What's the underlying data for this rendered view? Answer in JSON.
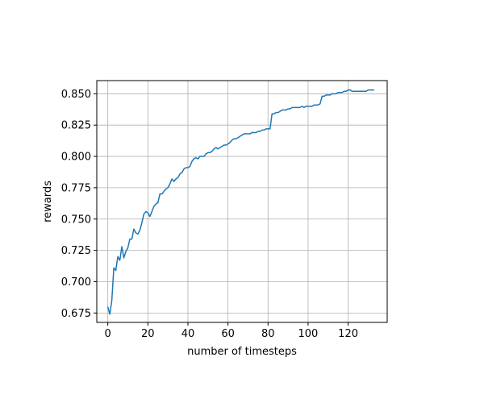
{
  "chart_data": {
    "type": "line",
    "xlabel": "number of timesteps",
    "ylabel": "rewards",
    "xlim": [
      -5.5,
      139.5
    ],
    "ylim": [
      0.6675,
      0.8605
    ],
    "xticks": [
      0,
      20,
      40,
      60,
      80,
      100,
      120
    ],
    "xtick_labels": [
      "0",
      "20",
      "40",
      "60",
      "80",
      "100",
      "120"
    ],
    "yticks": [
      0.675,
      0.7,
      0.725,
      0.75,
      0.775,
      0.8,
      0.825,
      0.85
    ],
    "ytick_labels": [
      "0.675",
      "0.700",
      "0.725",
      "0.750",
      "0.775",
      "0.800",
      "0.825",
      "0.850"
    ],
    "grid": true,
    "series": [
      {
        "color": "#1f77b4",
        "x": [
          0,
          1,
          2,
          3,
          4,
          5,
          6,
          7,
          8,
          9,
          10,
          11,
          12,
          13,
          14,
          15,
          16,
          17,
          18,
          19,
          20,
          21,
          22,
          23,
          24,
          25,
          26,
          27,
          28,
          29,
          30,
          31,
          32,
          33,
          34,
          35,
          36,
          37,
          38,
          39,
          40,
          41,
          42,
          43,
          44,
          45,
          46,
          47,
          48,
          49,
          50,
          51,
          52,
          53,
          54,
          55,
          56,
          57,
          58,
          59,
          60,
          61,
          62,
          63,
          64,
          65,
          66,
          67,
          68,
          69,
          70,
          71,
          72,
          73,
          74,
          75,
          76,
          77,
          78,
          79,
          80,
          81,
          82,
          83,
          84,
          85,
          86,
          87,
          88,
          89,
          90,
          91,
          92,
          93,
          94,
          95,
          96,
          97,
          98,
          99,
          100,
          101,
          102,
          103,
          104,
          105,
          106,
          107,
          108,
          109,
          110,
          111,
          112,
          113,
          114,
          115,
          116,
          117,
          118,
          119,
          120,
          121,
          122,
          123,
          124,
          125,
          126,
          127,
          128,
          129,
          130,
          131,
          132,
          133
        ],
        "y": [
          0.68,
          0.674,
          0.685,
          0.711,
          0.709,
          0.72,
          0.717,
          0.728,
          0.719,
          0.724,
          0.727,
          0.734,
          0.734,
          0.742,
          0.739,
          0.738,
          0.741,
          0.747,
          0.754,
          0.756,
          0.755,
          0.752,
          0.756,
          0.76,
          0.762,
          0.763,
          0.77,
          0.77,
          0.772,
          0.774,
          0.775,
          0.778,
          0.782,
          0.78,
          0.782,
          0.783,
          0.786,
          0.787,
          0.79,
          0.791,
          0.791,
          0.792,
          0.796,
          0.798,
          0.799,
          0.798,
          0.8,
          0.8,
          0.8,
          0.802,
          0.803,
          0.803,
          0.804,
          0.806,
          0.807,
          0.806,
          0.807,
          0.808,
          0.809,
          0.809,
          0.81,
          0.811,
          0.813,
          0.814,
          0.814,
          0.815,
          0.816,
          0.817,
          0.818,
          0.818,
          0.818,
          0.818,
          0.819,
          0.819,
          0.819,
          0.82,
          0.82,
          0.821,
          0.821,
          0.822,
          0.822,
          0.822,
          0.834,
          0.834,
          0.835,
          0.835,
          0.836,
          0.837,
          0.837,
          0.837,
          0.838,
          0.838,
          0.839,
          0.839,
          0.839,
          0.839,
          0.839,
          0.84,
          0.839,
          0.84,
          0.84,
          0.84,
          0.84,
          0.841,
          0.841,
          0.841,
          0.842,
          0.848,
          0.848,
          0.849,
          0.849,
          0.849,
          0.85,
          0.85,
          0.85,
          0.851,
          0.851,
          0.851,
          0.852,
          0.852,
          0.853,
          0.853,
          0.852,
          0.852,
          0.852,
          0.852,
          0.852,
          0.852,
          0.852,
          0.852,
          0.853,
          0.853,
          0.853,
          0.853
        ]
      }
    ]
  }
}
